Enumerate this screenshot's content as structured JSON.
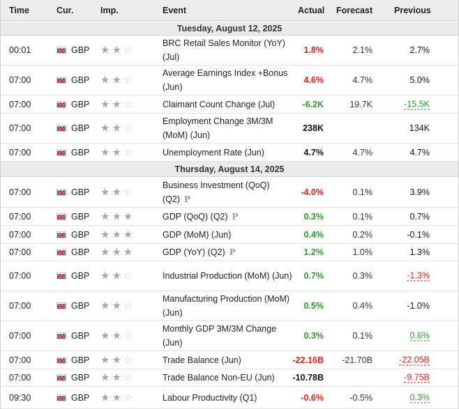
{
  "headers": {
    "time": "Time",
    "currency": "Cur.",
    "importance": "Imp.",
    "event": "Event",
    "actual": "Actual",
    "forecast": "Forecast",
    "previous": "Previous"
  },
  "prelim_marker": "P",
  "colors": {
    "negative": "#e31c1c",
    "positive": "#2b9b2b",
    "neutral": "#111111",
    "day_header_bg": "#eaeaea"
  },
  "days": [
    {
      "label": "Tuesday, August 12, 2025",
      "events": [
        {
          "time": "00:01",
          "currency": "GBP",
          "flag": "uk-flag-icon",
          "importance": 2,
          "event": "BRC Retail Sales Monitor (YoY) (Jul)",
          "prelim": false,
          "actual": "1.8%",
          "actual_color": "red",
          "forecast": "2.1%",
          "previous": "2.7%",
          "previous_style": "black"
        },
        {
          "time": "07:00",
          "currency": "GBP",
          "flag": "uk-flag-icon",
          "importance": 2,
          "event": "Average Earnings Index +Bonus (Jun)",
          "prelim": false,
          "actual": "4.6%",
          "actual_color": "red",
          "forecast": "4.7%",
          "previous": "5.0%",
          "previous_style": "black"
        },
        {
          "time": "07:00",
          "currency": "GBP",
          "flag": "uk-flag-icon",
          "importance": 2,
          "event": "Claimant Count Change (Jul)",
          "prelim": false,
          "actual": "-6.2K",
          "actual_color": "green",
          "forecast": "19.7K",
          "previous": "-15.5K",
          "previous_style": "rev-green"
        },
        {
          "time": "07:00",
          "currency": "GBP",
          "flag": "uk-flag-icon",
          "importance": 2,
          "event": "Employment Change 3M/3M (MoM) (Jun)",
          "prelim": false,
          "actual": "238K",
          "actual_color": "black",
          "forecast": "",
          "previous": "134K",
          "previous_style": "black"
        },
        {
          "time": "07:00",
          "currency": "GBP",
          "flag": "uk-flag-icon",
          "importance": 2,
          "event": "Unemployment Rate (Jun)",
          "prelim": false,
          "actual": "4.7%",
          "actual_color": "black",
          "forecast": "4.7%",
          "previous": "4.7%",
          "previous_style": "black"
        }
      ]
    },
    {
      "label": "Thursday, August 14, 2025",
      "events": [
        {
          "time": "07:00",
          "currency": "GBP",
          "flag": "uk-flag-icon",
          "importance": 2,
          "event": "Business Investment (QoQ) (Q2)",
          "prelim": true,
          "actual": "-4.0%",
          "actual_color": "red",
          "forecast": "0.1%",
          "previous": "3.9%",
          "previous_style": "black"
        },
        {
          "time": "07:00",
          "currency": "GBP",
          "flag": "uk-flag-icon",
          "importance": 3,
          "event": "GDP (QoQ) (Q2)",
          "prelim": true,
          "actual": "0.3%",
          "actual_color": "green",
          "forecast": "0.1%",
          "previous": "0.7%",
          "previous_style": "black"
        },
        {
          "time": "07:00",
          "currency": "GBP",
          "flag": "uk-flag-icon",
          "importance": 3,
          "event": "GDP (MoM) (Jun)",
          "prelim": false,
          "actual": "0.4%",
          "actual_color": "green",
          "forecast": "0.2%",
          "previous": "-0.1%",
          "previous_style": "black"
        },
        {
          "time": "07:00",
          "currency": "GBP",
          "flag": "uk-flag-icon",
          "importance": 3,
          "event": "GDP (YoY) (Q2)",
          "prelim": true,
          "actual": "1.2%",
          "actual_color": "green",
          "forecast": "1.0%",
          "previous": "1.3%",
          "previous_style": "black"
        },
        {
          "time": "07:00",
          "currency": "GBP",
          "flag": "uk-flag-icon",
          "importance": 2,
          "event": "Industrial Production (MoM) (Jun)",
          "prelim": false,
          "actual": "0.7%",
          "actual_color": "green",
          "forecast": "0.3%",
          "previous": "-1.3%",
          "previous_style": "rev-red"
        },
        {
          "time": "07:00",
          "currency": "GBP",
          "flag": "uk-flag-icon",
          "importance": 2,
          "event": "Manufacturing Production (MoM) (Jun)",
          "prelim": false,
          "actual": "0.5%",
          "actual_color": "green",
          "forecast": "0.4%",
          "previous": "-1.0%",
          "previous_style": "black"
        },
        {
          "time": "07:00",
          "currency": "GBP",
          "flag": "uk-flag-icon",
          "importance": 2,
          "event": "Monthly GDP 3M/3M Change (Jun)",
          "prelim": false,
          "actual": "0.3%",
          "actual_color": "green",
          "forecast": "0.1%",
          "previous": "0.6%",
          "previous_style": "rev-green"
        },
        {
          "time": "07:00",
          "currency": "GBP",
          "flag": "uk-flag-icon",
          "importance": 2,
          "event": "Trade Balance (Jun)",
          "prelim": false,
          "actual": "-22.16B",
          "actual_color": "red",
          "forecast": "-21.70B",
          "previous": "-22.05B",
          "previous_style": "rev-red"
        },
        {
          "time": "07:00",
          "currency": "GBP",
          "flag": "uk-flag-icon",
          "importance": 2,
          "event": "Trade Balance Non-EU (Jun)",
          "prelim": false,
          "actual": "-10.78B",
          "actual_color": "black",
          "forecast": "",
          "previous": "-9.75B",
          "previous_style": "rev-red"
        },
        {
          "time": "09:30",
          "currency": "GBP",
          "flag": "uk-flag-icon",
          "importance": 2,
          "event": "Labour Productivity (Q1)",
          "prelim": false,
          "actual": "-0.6%",
          "actual_color": "red",
          "forecast": "-0.5%",
          "previous": "0.3%",
          "previous_style": "rev-green"
        }
      ]
    }
  ]
}
